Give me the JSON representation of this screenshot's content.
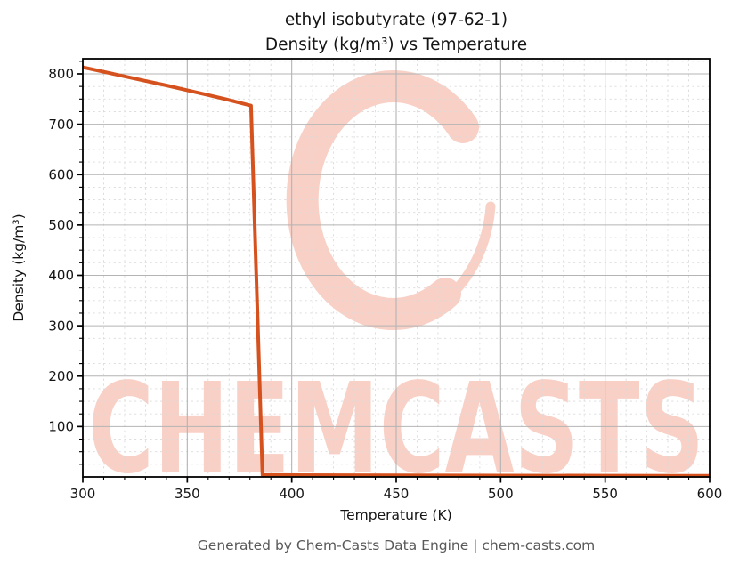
{
  "title": {
    "line1": "ethyl isobutyrate (97-62-1)",
    "line2": "Density (kg/m³) vs Temperature"
  },
  "footer": {
    "text": "Generated by Chem-Casts Data Engine | chem-casts.com"
  },
  "watermark": {
    "text": "CHEMCASTS",
    "logo": "brush-c-ring"
  },
  "colors": {
    "line": "#d5521f",
    "watermark": "#f8d0c6",
    "grid_major": "#b4b4b4",
    "grid_minor": "#dadada",
    "spine": "#000000",
    "tick": "#000000",
    "tick_label": "#141414",
    "footer_text": "#595959",
    "background": "#ffffff"
  },
  "chart_data": {
    "type": "line",
    "title": "ethyl isobutyrate (97-62-1)\nDensity (kg/m³) vs Temperature",
    "xlabel": "Temperature (K)",
    "ylabel": "Density (kg/m³)",
    "xlim": [
      300,
      600
    ],
    "ylim": [
      0,
      830
    ],
    "x_ticks": [
      300,
      350,
      400,
      450,
      500,
      550,
      600
    ],
    "y_ticks": [
      100,
      200,
      300,
      400,
      500,
      600,
      700,
      800
    ],
    "x_minor_step": 10,
    "y_minor_step": 25,
    "grid": true,
    "legend": false,
    "series": [
      {
        "name": "density",
        "color": "#d5521f",
        "x": [
          300,
          310,
          320,
          330,
          340,
          350,
          360,
          370,
          380.5,
          386,
          400,
          450,
          500,
          550,
          600
        ],
        "y": [
          813,
          804,
          795,
          786,
          777,
          767.5,
          758,
          748,
          737,
          4,
          3.5,
          3.0,
          2.7,
          2.4,
          2.2
        ]
      }
    ]
  }
}
